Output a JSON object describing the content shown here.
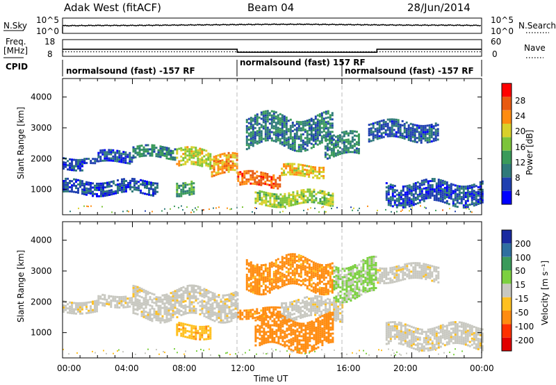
{
  "header": {
    "title": "Adak West (fitACF)",
    "beam": "Beam 04",
    "date": "28/Jun/2014"
  },
  "noise_panel": {
    "left_label": "N.Sky",
    "right_label": "N.Search",
    "left_ticks": [
      "10^5",
      "10^0"
    ],
    "right_ticks": [
      "10^5",
      "10^0"
    ]
  },
  "freq_panel": {
    "left_label_1": "Freq.",
    "left_label_2": "[MHz]",
    "right_label": "Nave",
    "left_ticks": [
      "18",
      "8"
    ],
    "right_ticks": [
      "60",
      "0"
    ]
  },
  "cpid_panel": {
    "label": "CPID",
    "segments": [
      {
        "start": 0,
        "end": 10,
        "text": "normalsound (fast) -157 RF"
      },
      {
        "start": 10,
        "end": 16,
        "text": "normalsound (fast) 157 RF"
      },
      {
        "start": 16,
        "end": 24,
        "text": "normalsound (fast) -157 RF"
      }
    ]
  },
  "power_panel": {
    "ylabel": "Slant Range [km]",
    "cbar_label": "Power [dB]",
    "cbar_ticks": [
      "28",
      "24",
      "20",
      "16",
      "12",
      "8",
      "4"
    ],
    "cbar_colors": [
      "#0000ff",
      "#1f3fb0",
      "#2f7a7a",
      "#3a9a5a",
      "#7cc43a",
      "#d9d02a",
      "#ff8c10",
      "#e85a10",
      "#ff0000"
    ]
  },
  "velocity_panel": {
    "ylabel": "Slant Range [km]",
    "cbar_label": "Velocity [m s⁻¹]",
    "cbar_ticks": [
      "200",
      "100",
      "50",
      "15",
      "-15",
      "-50",
      "-100",
      "-200"
    ],
    "cbar_colors": [
      "#1a2aa0",
      "#2f6fa0",
      "#3a9a5a",
      "#7cd040",
      "#c8c8c0",
      "#ffc020",
      "#ff8c10",
      "#ff3000",
      "#e00000"
    ]
  },
  "x_axis": {
    "label": "Time UT",
    "ticks": [
      "00:00",
      "04:00",
      "08:00",
      "12:00",
      "16:00",
      "20:00",
      "00:00"
    ]
  },
  "chart_data": [
    {
      "type": "line",
      "title": "N.Sky / N.Search",
      "x": [
        0,
        2,
        4,
        6,
        8,
        10,
        12,
        14,
        16,
        18,
        20,
        22,
        24
      ],
      "series": [
        {
          "name": "N.Sky",
          "values": [
            2.5,
            2.6,
            2.6,
            2.7,
            2.8,
            2.9,
            3.0,
            3.0,
            2.9,
            2.8,
            2.7,
            2.7,
            2.6
          ]
        }
      ],
      "ylim": [
        0,
        5
      ]
    },
    {
      "type": "line",
      "title": "Freq. / Nave",
      "x": [
        0,
        10,
        10,
        18,
        18,
        24
      ],
      "series": [
        {
          "name": "Freq.",
          "values": [
            12.2,
            12.2,
            10.2,
            10.2,
            12.2,
            12.2
          ]
        },
        {
          "name": "Nave",
          "values": [
            15,
            15,
            15,
            15,
            15,
            15
          ]
        }
      ],
      "ylim": [
        8,
        18
      ]
    },
    {
      "type": "heatmap",
      "title": "Power [dB]",
      "xlabel": "Time UT",
      "ylabel": "Slant Range [km]",
      "xlim": [
        0,
        24
      ],
      "ylim": [
        180,
        4600
      ],
      "x_units": "hours UT",
      "bands": [
        {
          "x0": 0.0,
          "x1": 1.2,
          "r0": 1700,
          "r1": 2050,
          "value": 6
        },
        {
          "x0": 1.2,
          "x1": 2.0,
          "r0": 1850,
          "r1": 2000,
          "value": 7
        },
        {
          "x0": 0.0,
          "x1": 5.4,
          "r0": 850,
          "r1": 1300,
          "value": 6
        },
        {
          "x0": 2.0,
          "x1": 4.0,
          "r0": 1900,
          "r1": 2250,
          "value": 6
        },
        {
          "x0": 4.0,
          "x1": 6.5,
          "r0": 2000,
          "r1": 2400,
          "value": 10
        },
        {
          "x0": 6.5,
          "x1": 8.5,
          "r0": 1700,
          "r1": 2300,
          "value": 18
        },
        {
          "x0": 8.5,
          "x1": 10.0,
          "r0": 1450,
          "r1": 2100,
          "value": 22
        },
        {
          "x0": 6.5,
          "x1": 7.5,
          "r0": 850,
          "r1": 1300,
          "value": 12
        },
        {
          "x0": 10.0,
          "x1": 12.5,
          "r0": 1100,
          "r1": 1550,
          "value": 25
        },
        {
          "x0": 12.5,
          "x1": 15.0,
          "r0": 1450,
          "r1": 1800,
          "value": 20
        },
        {
          "x0": 10.5,
          "x1": 15.5,
          "r0": 2400,
          "r1": 3400,
          "value": 9
        },
        {
          "x0": 11.0,
          "x1": 15.5,
          "r0": 500,
          "r1": 950,
          "value": 17
        },
        {
          "x0": 15.0,
          "x1": 17.0,
          "r0": 2100,
          "r1": 2800,
          "value": 10
        },
        {
          "x0": 17.5,
          "x1": 21.5,
          "r0": 2600,
          "r1": 3200,
          "value": 7
        },
        {
          "x0": 18.5,
          "x1": 24.0,
          "r0": 550,
          "r1": 1250,
          "value": 6
        }
      ]
    },
    {
      "type": "heatmap",
      "title": "Velocity [m s⁻¹]",
      "xlabel": "Time UT",
      "ylabel": "Slant Range [km]",
      "xlim": [
        0,
        24
      ],
      "ylim": [
        180,
        4600
      ],
      "x_units": "hours UT",
      "bands": [
        {
          "x0": 0.0,
          "x1": 2.0,
          "r0": 1700,
          "r1": 2050,
          "value": -5
        },
        {
          "x0": 2.0,
          "x1": 4.0,
          "r0": 1900,
          "r1": 2250,
          "value": -5
        },
        {
          "x0": 4.0,
          "x1": 10.0,
          "r0": 1500,
          "r1": 2400,
          "value": -5
        },
        {
          "x0": 6.5,
          "x1": 8.5,
          "r0": 850,
          "r1": 1300,
          "value": -40
        },
        {
          "x0": 10.0,
          "x1": 12.5,
          "r0": 1500,
          "r1": 1800,
          "value": -60
        },
        {
          "x0": 12.5,
          "x1": 16.0,
          "r0": 1450,
          "r1": 2100,
          "value": -5
        },
        {
          "x0": 10.5,
          "x1": 15.5,
          "r0": 2400,
          "r1": 3400,
          "value": -60
        },
        {
          "x0": 11.0,
          "x1": 15.5,
          "r0": 500,
          "r1": 1500,
          "value": -70
        },
        {
          "x0": 15.5,
          "x1": 18.0,
          "r0": 2200,
          "r1": 3300,
          "value": 20
        },
        {
          "x0": 18.0,
          "x1": 21.5,
          "r0": 2700,
          "r1": 3200,
          "value": -5
        },
        {
          "x0": 18.5,
          "x1": 24.0,
          "r0": 550,
          "r1": 1250,
          "value": -5
        }
      ]
    }
  ]
}
